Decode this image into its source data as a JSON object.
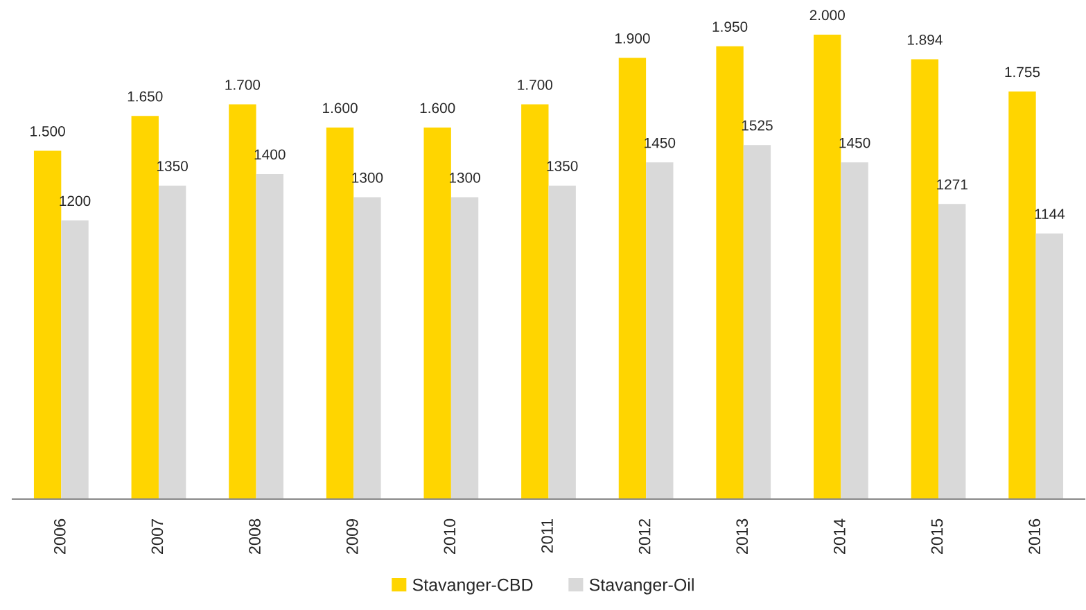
{
  "chart_data": {
    "type": "bar",
    "categories": [
      "2006",
      "2007",
      "2008",
      "2009",
      "2010",
      "2011",
      "2012",
      "2013",
      "2014",
      "2015",
      "2016"
    ],
    "series": [
      {
        "name": "Stavanger-CBD",
        "color": "#ffd500",
        "values": [
          1500,
          1650,
          1700,
          1600,
          1600,
          1700,
          1900,
          1950,
          2000,
          1894,
          1755
        ],
        "value_labels": [
          "1.500",
          "1.650",
          "1.700",
          "1.600",
          "1.600",
          "1.700",
          "1.900",
          "1.950",
          "2.000",
          "1.894",
          "1.755"
        ]
      },
      {
        "name": "Stavanger-Oil",
        "color": "#d9d9d9",
        "values": [
          1200,
          1350,
          1400,
          1300,
          1300,
          1350,
          1450,
          1525,
          1450,
          1271,
          1144
        ],
        "value_labels": [
          "1200",
          "1350",
          "1400",
          "1300",
          "1300",
          "1350",
          "1450",
          "1525",
          "1450",
          "1271",
          "1144"
        ]
      }
    ],
    "legend": "bottom",
    "grid": false,
    "tick_labels": "x"
  }
}
